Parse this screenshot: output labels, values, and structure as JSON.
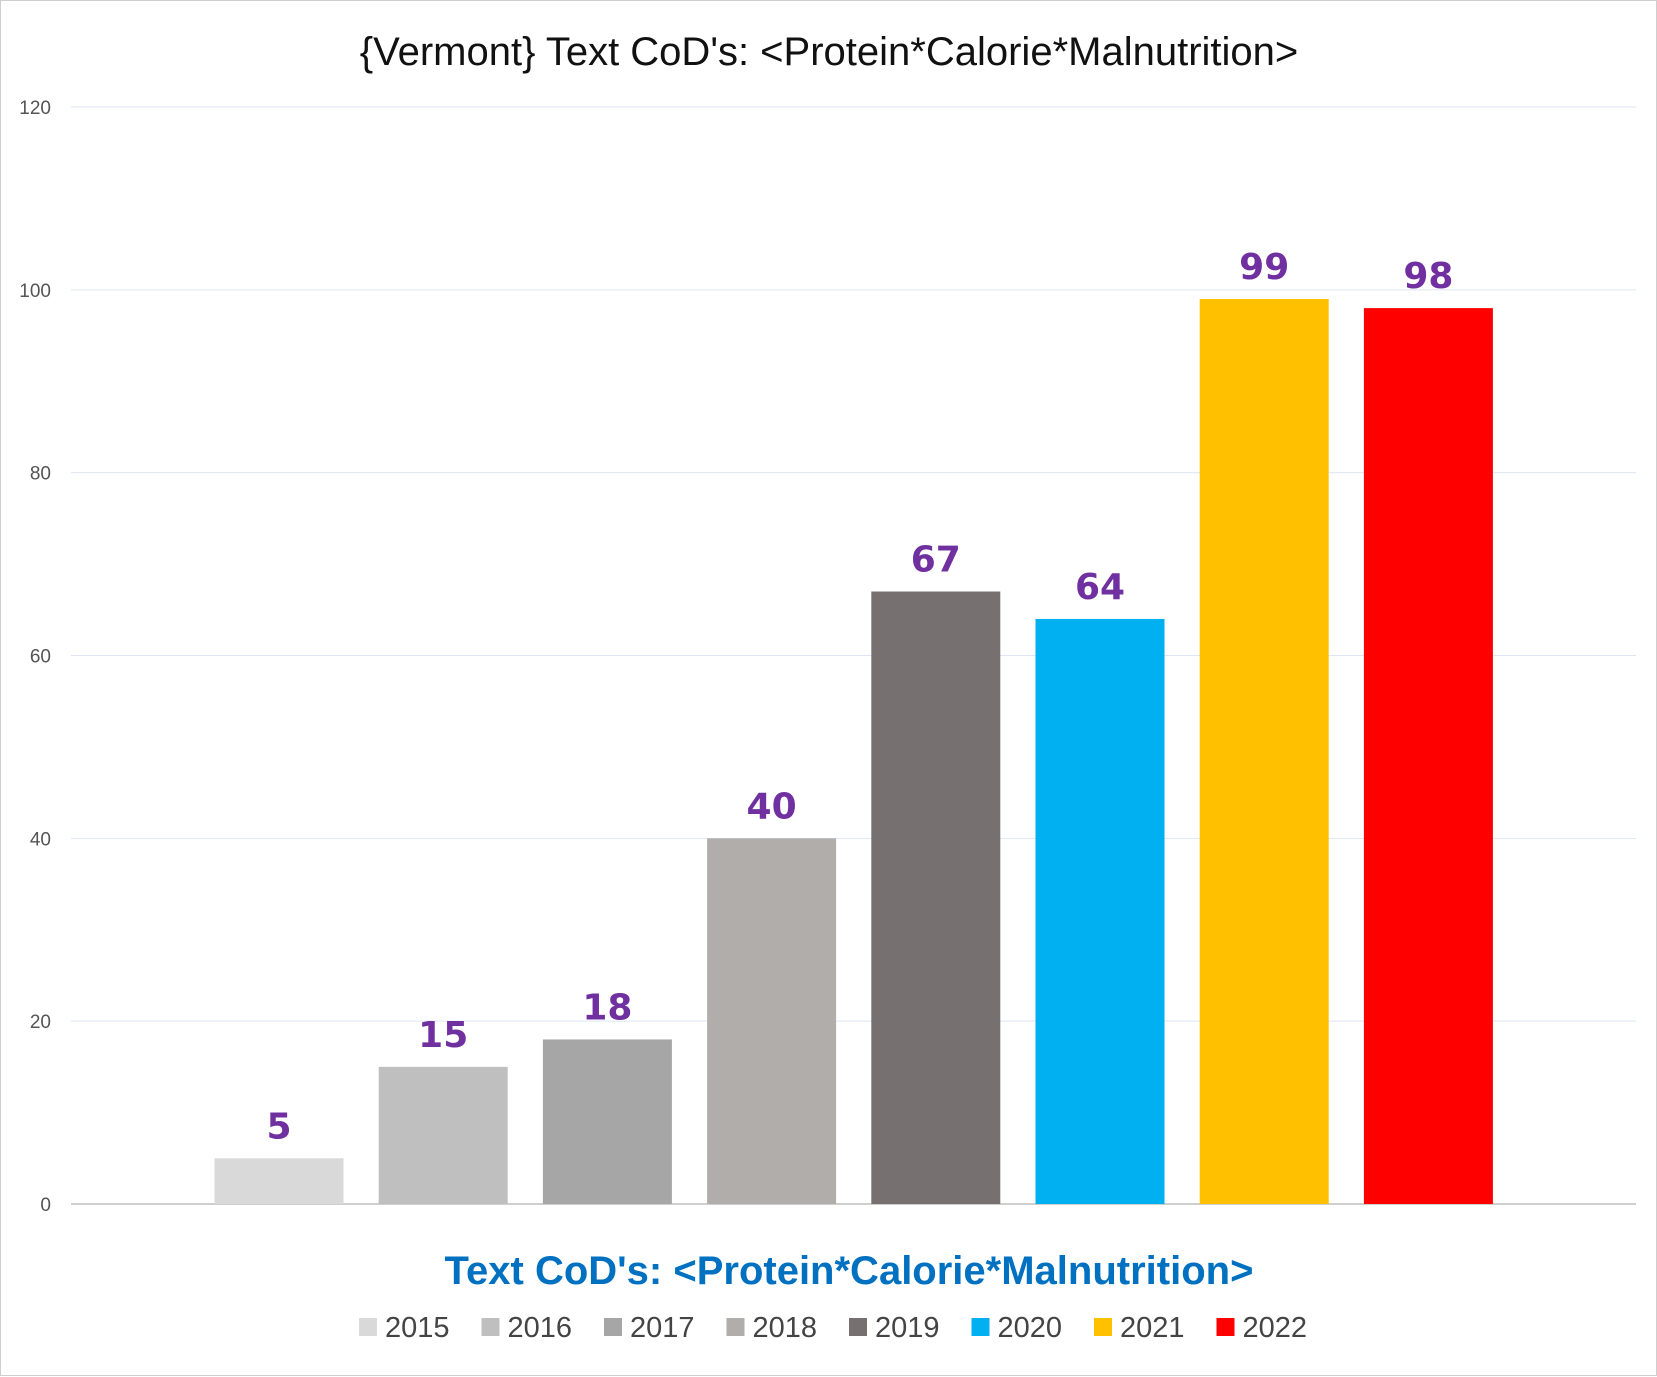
{
  "chart_data": {
    "type": "bar",
    "title": "{Vermont}  Text CoD's: <Protein*Calorie*Malnutrition>",
    "xlabel": "Text CoD's: <Protein*Calorie*Malnutrition>",
    "ylabel": "",
    "ylim": [
      0,
      120
    ],
    "yticks": [
      0,
      20,
      40,
      60,
      80,
      100,
      120
    ],
    "grid": true,
    "legend_position": "bottom",
    "series": [
      {
        "name": "2015",
        "value": 5,
        "color": "#d9d9d9"
      },
      {
        "name": "2016",
        "value": 15,
        "color": "#bfbfbf"
      },
      {
        "name": "2017",
        "value": 18,
        "color": "#a6a6a6"
      },
      {
        "name": "2018",
        "value": 40,
        "color": "#b0adab"
      },
      {
        "name": "2019",
        "value": 67,
        "color": "#767170"
      },
      {
        "name": "2020",
        "value": 64,
        "color": "#00b0f0"
      },
      {
        "name": "2021",
        "value": 99,
        "color": "#ffc000"
      },
      {
        "name": "2022",
        "value": 98,
        "color": "#ff0000"
      }
    ],
    "colors": {
      "data_label": "#7030a0",
      "xlabel": "#0070c0",
      "gridline": "#dce6f2",
      "axis": "#bfbfbf"
    }
  }
}
